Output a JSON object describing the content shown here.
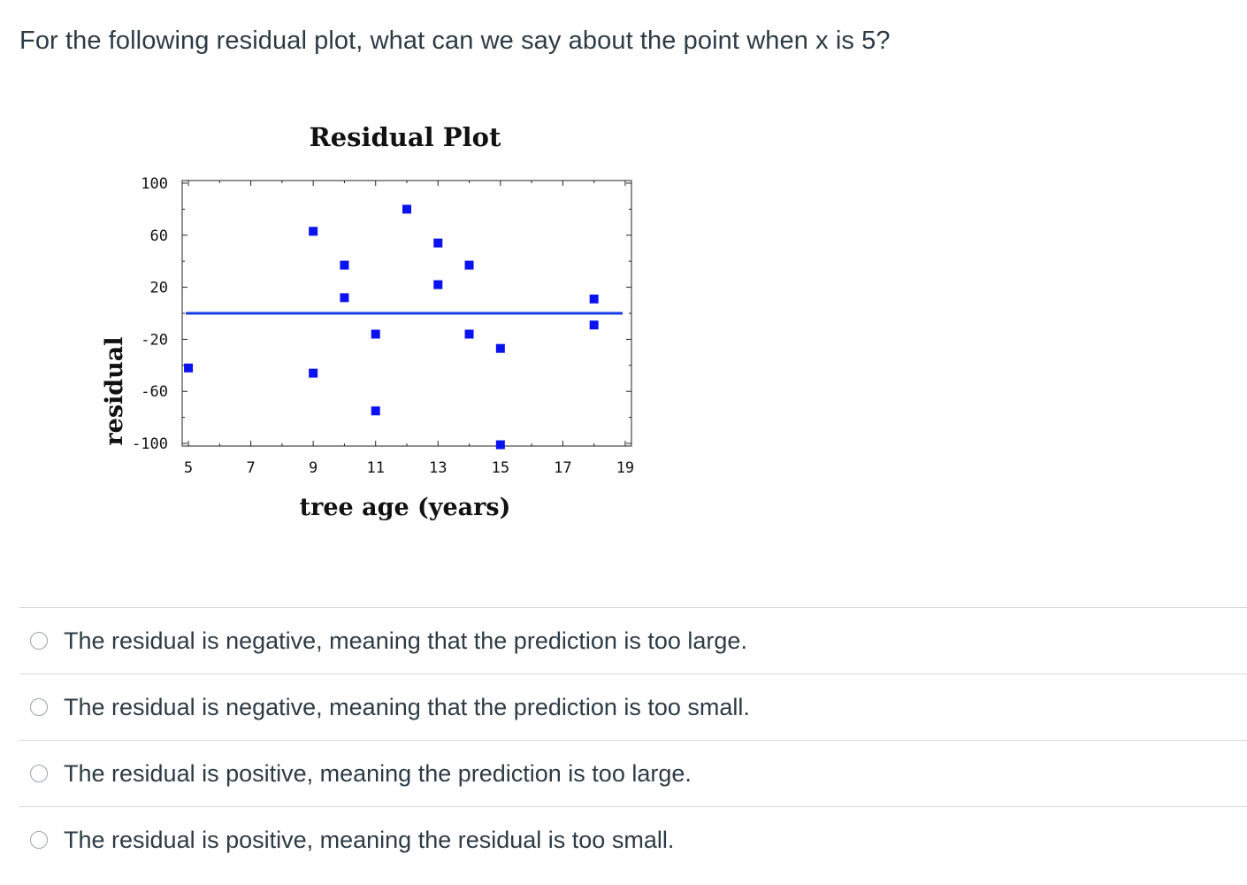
{
  "question": {
    "text": "For the following residual  plot, what can we say about the point when x is 5?"
  },
  "chart_data": {
    "type": "scatter",
    "title": "Residual Plot",
    "xlabel": "tree age (years)",
    "ylabel": "residual",
    "xlim": [
      4.8,
      19.2
    ],
    "ylim": [
      -102,
      102
    ],
    "x_ticks": [
      5,
      7,
      9,
      11,
      13,
      15,
      17,
      19
    ],
    "y_ticks": [
      100,
      60,
      20,
      -20,
      -60,
      -100
    ],
    "grid": false,
    "reference_line": 0,
    "colors": {
      "points": "#0a12f0",
      "reference_line": "#1a3ee8",
      "frame": "#222222"
    },
    "points": [
      {
        "x": 5,
        "y": -42
      },
      {
        "x": 9,
        "y": 63
      },
      {
        "x": 9,
        "y": -46
      },
      {
        "x": 10,
        "y": 37
      },
      {
        "x": 10,
        "y": 12
      },
      {
        "x": 11,
        "y": -16
      },
      {
        "x": 11,
        "y": -75
      },
      {
        "x": 12,
        "y": 80
      },
      {
        "x": 13,
        "y": 54
      },
      {
        "x": 13,
        "y": 22
      },
      {
        "x": 14,
        "y": 37
      },
      {
        "x": 14,
        "y": -16
      },
      {
        "x": 15,
        "y": -27
      },
      {
        "x": 15,
        "y": -101
      },
      {
        "x": 18,
        "y": 11
      },
      {
        "x": 18,
        "y": -9
      }
    ]
  },
  "answers": [
    {
      "label": "The residual is negative, meaning that the prediction is too large."
    },
    {
      "label": "The residual is negative, meaning that the prediction is too small."
    },
    {
      "label": "The residual is positive, meaning the prediction is too large."
    },
    {
      "label": "The residual is positive, meaning the residual is too small."
    }
  ]
}
